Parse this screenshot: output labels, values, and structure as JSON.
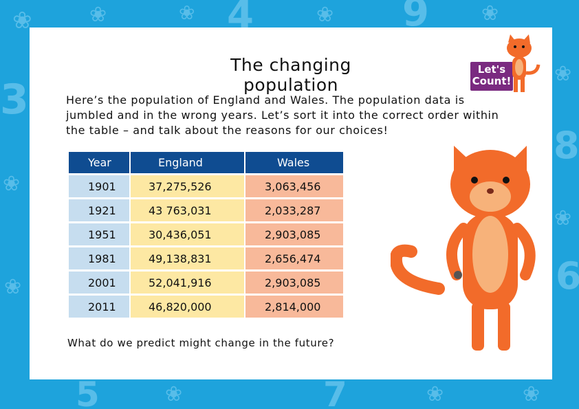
{
  "title": "The changing population",
  "intro": "Here’s the population of England and Wales. The population data is jumbled and in the wrong years. Let’s sort it into the correct order within the table – and talk about the reasons for our choices!",
  "logo": {
    "line1": "Let's",
    "line2": "Count!"
  },
  "table": {
    "headers": [
      "Year",
      "England",
      "Wales"
    ],
    "rows": [
      [
        "1901",
        "37,275,526",
        "3,063,456"
      ],
      [
        "1921",
        "43 763,031",
        "2,033,287"
      ],
      [
        "1951",
        "30,436,051",
        "2,903,085"
      ],
      [
        "1981",
        "49,138,831",
        "2,656,474"
      ],
      [
        "2001",
        "52,041,916",
        "2,903,085"
      ],
      [
        "2011",
        "46,820,000",
        "2,814,000"
      ]
    ]
  },
  "question": "What do we predict might change in the future?",
  "colors": {
    "background": "#1ea3dc",
    "header": "#0f4c91",
    "year_cells": "#c6ddef",
    "england_cells": "#fde8a3",
    "wales_cells": "#f8b99a",
    "logo": "#7a2a80",
    "cat": "#f26b2a"
  }
}
